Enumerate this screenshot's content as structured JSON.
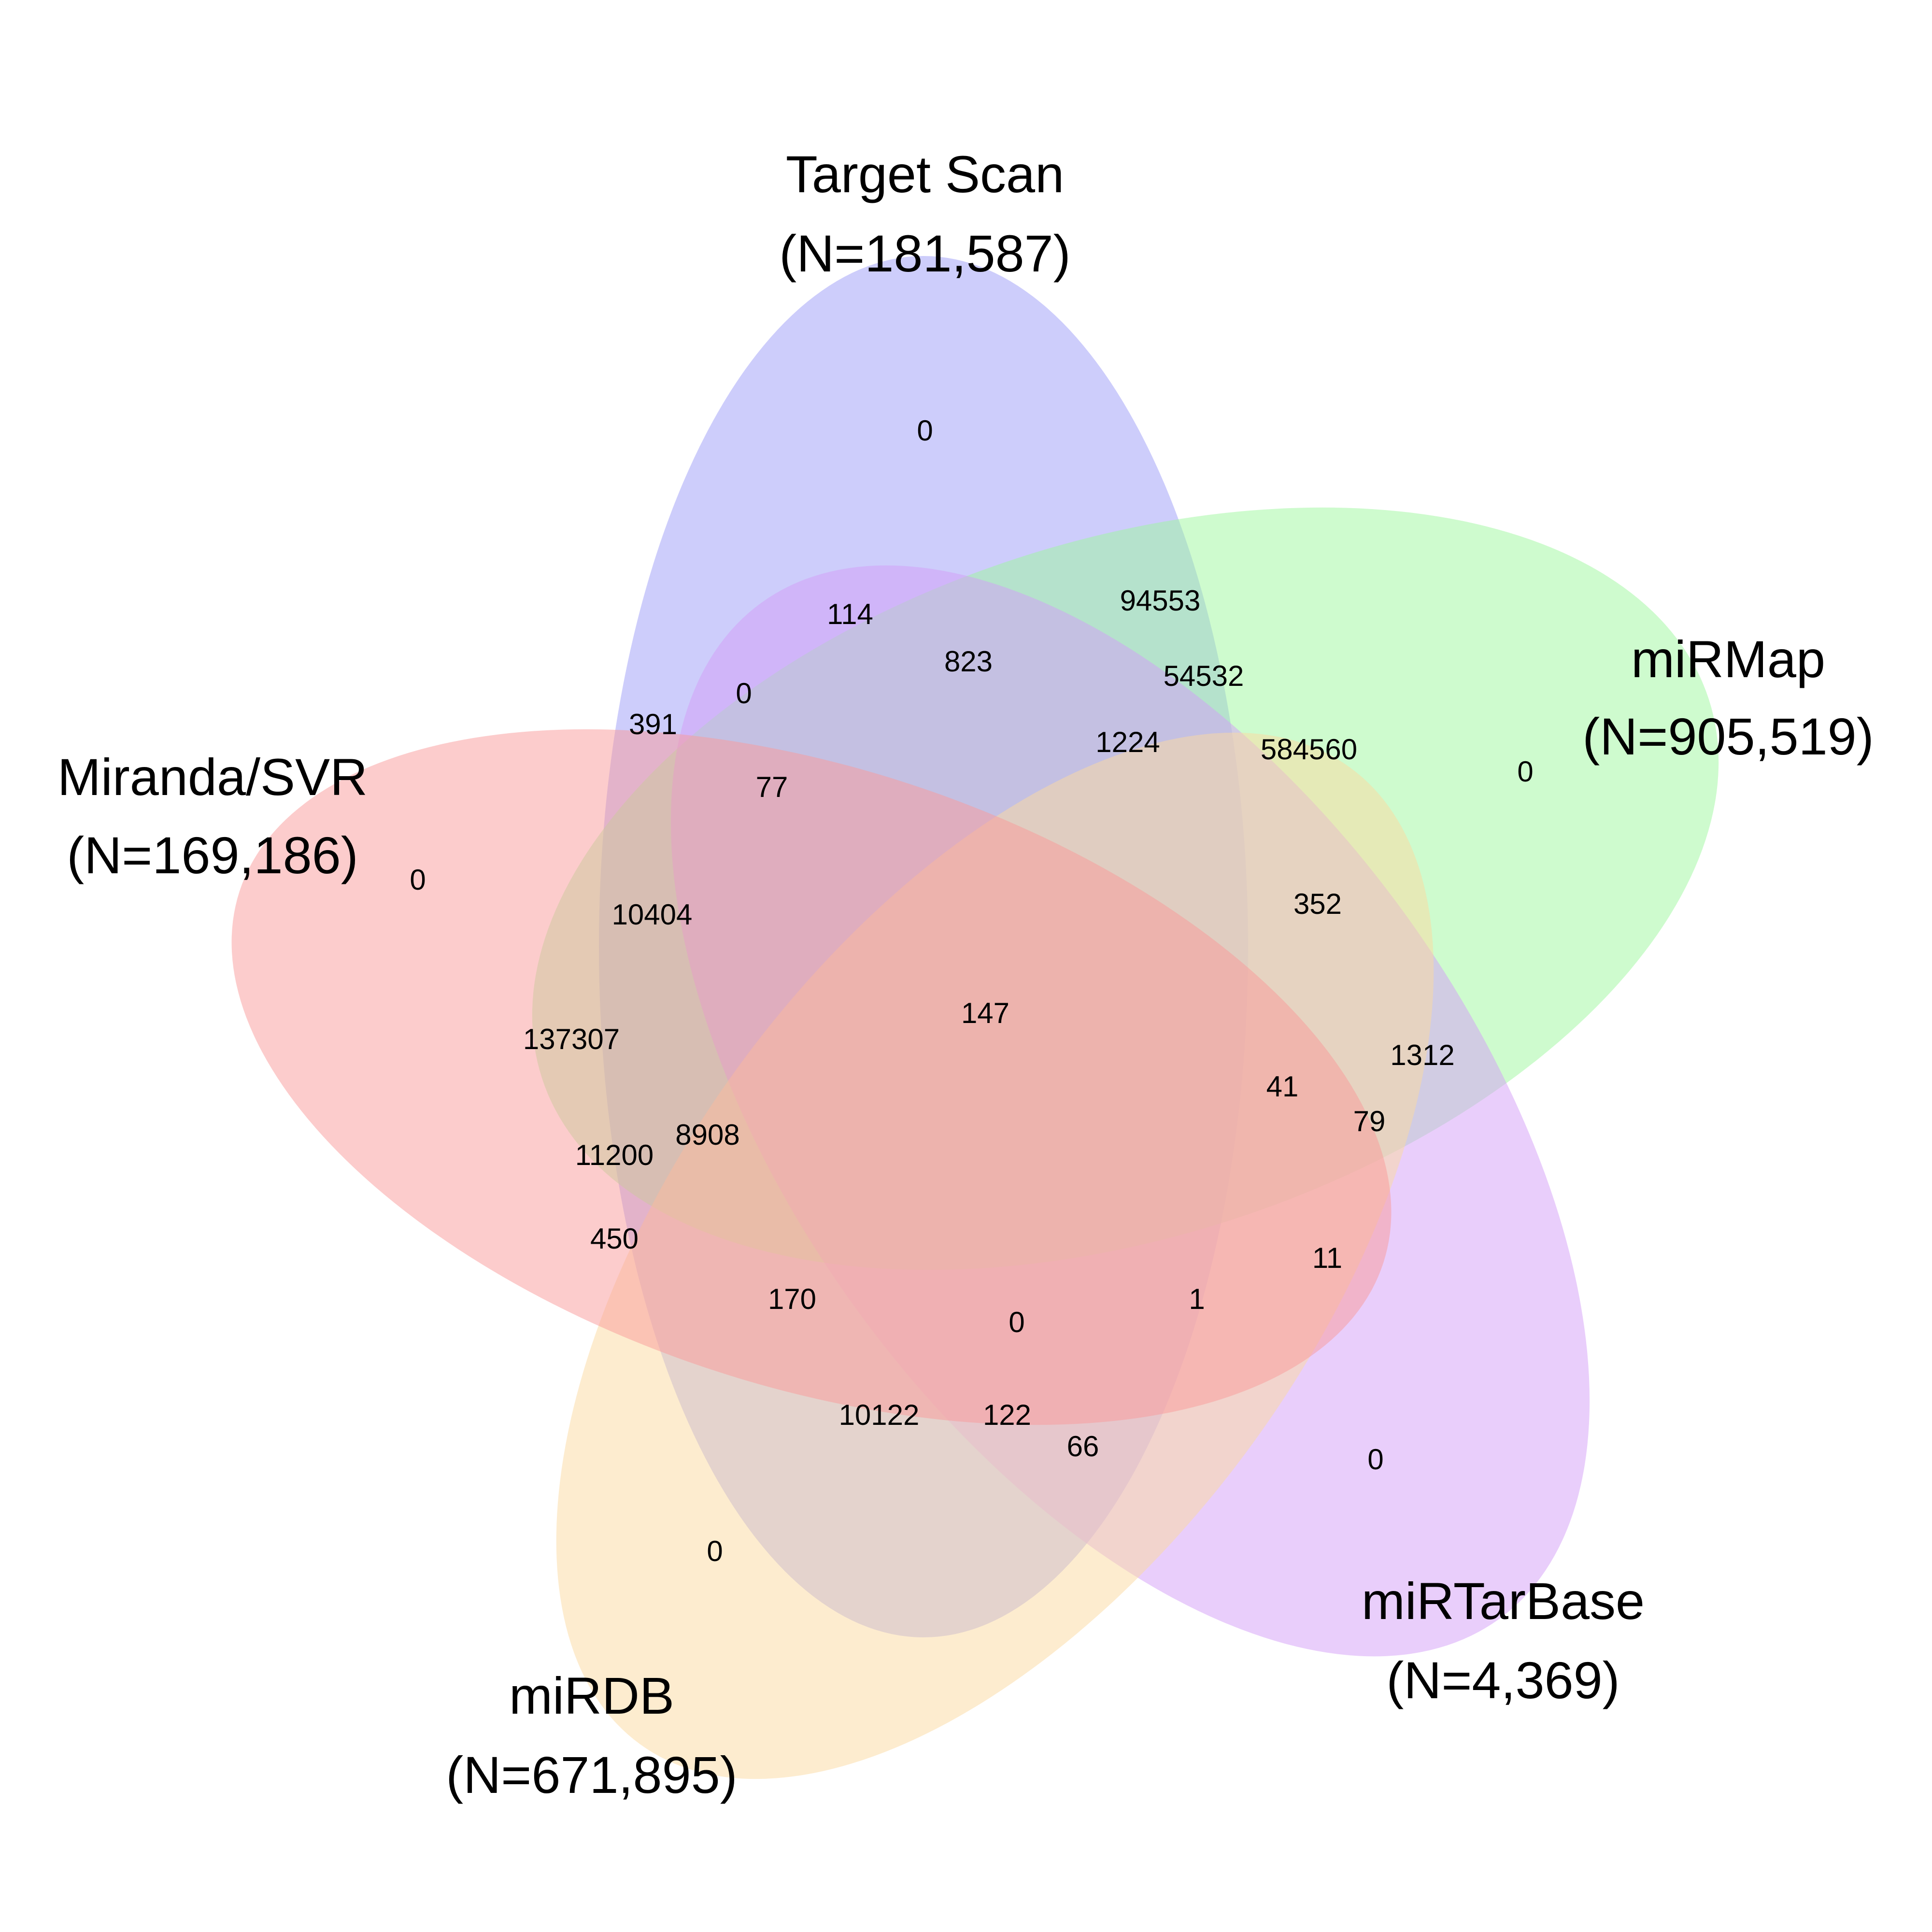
{
  "sets": [
    {
      "id": "target-scan",
      "name": "Target Scan",
      "count": "(N=181,587)",
      "color": "#9b9bf7"
    },
    {
      "id": "mirmap",
      "name": "miRMap",
      "count": "(N=905,519)",
      "color": "#9ef79e"
    },
    {
      "id": "mirtarbase",
      "name": "miRTarBase",
      "count": "(N=4,369)",
      "color": "#d49df7"
    },
    {
      "id": "mirdb",
      "name": "miRDB",
      "count": "(N=671,895)",
      "color": "#fcd9a0"
    },
    {
      "id": "miranda-svr",
      "name": "Miranda/SVR",
      "count": "(N=169,186)",
      "color": "#f99a9a"
    }
  ],
  "regions": [
    {
      "id": "ts-only",
      "value": "0"
    },
    {
      "id": "mirmap-only",
      "value": "0"
    },
    {
      "id": "mirtarbase-only",
      "value": "0"
    },
    {
      "id": "mirdb-only",
      "value": "0"
    },
    {
      "id": "miranda-only",
      "value": "0"
    },
    {
      "id": "r-114",
      "value": "114"
    },
    {
      "id": "r-94553",
      "value": "94553"
    },
    {
      "id": "r-823",
      "value": "823"
    },
    {
      "id": "r-54532",
      "value": "54532"
    },
    {
      "id": "r-1224",
      "value": "1224"
    },
    {
      "id": "r-584560",
      "value": "584560"
    },
    {
      "id": "r-391",
      "value": "391"
    },
    {
      "id": "r-0a",
      "value": "0"
    },
    {
      "id": "r-77",
      "value": "77"
    },
    {
      "id": "r-10404",
      "value": "10404"
    },
    {
      "id": "r-352",
      "value": "352"
    },
    {
      "id": "r-147",
      "value": "147"
    },
    {
      "id": "r-137307",
      "value": "137307"
    },
    {
      "id": "r-1312",
      "value": "1312"
    },
    {
      "id": "r-41",
      "value": "41"
    },
    {
      "id": "r-79",
      "value": "79"
    },
    {
      "id": "r-8908",
      "value": "8908"
    },
    {
      "id": "r-11200",
      "value": "11200"
    },
    {
      "id": "r-450",
      "value": "450"
    },
    {
      "id": "r-11",
      "value": "11"
    },
    {
      "id": "r-170",
      "value": "170"
    },
    {
      "id": "r-1",
      "value": "1"
    },
    {
      "id": "r-0b",
      "value": "0"
    },
    {
      "id": "r-10122",
      "value": "10122"
    },
    {
      "id": "r-122",
      "value": "122"
    },
    {
      "id": "r-66",
      "value": "66"
    }
  ]
}
